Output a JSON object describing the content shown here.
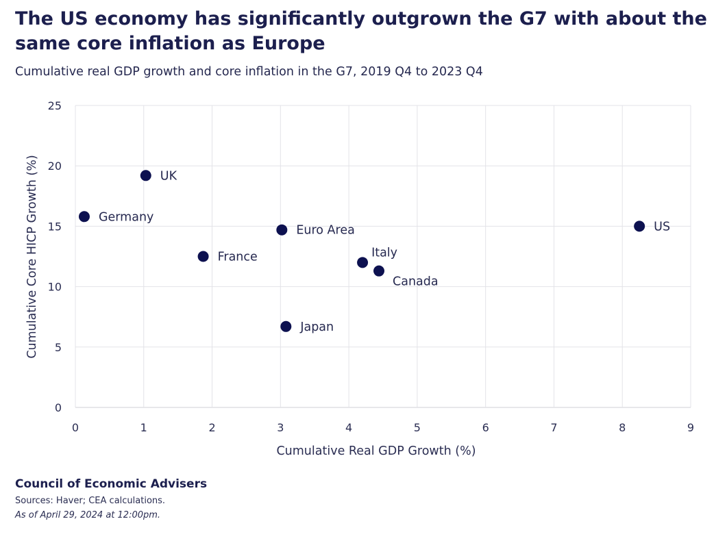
{
  "chart_data": {
    "type": "scatter",
    "title": "The US economy has significantly outgrown the G7 with about the same core inflation as Europe",
    "subtitle": "Cumulative real GDP growth and core inflation in the G7, 2019 Q4 to 2023 Q4",
    "xlabel": "Cumulative Real GDP Growth (%)",
    "ylabel": "Cumulative Core HICP Growth (%)",
    "xlim": [
      0,
      9
    ],
    "ylim": [
      0,
      25
    ],
    "xticks": [
      0,
      1,
      2,
      3,
      4,
      5,
      6,
      7,
      8,
      9
    ],
    "yticks": [
      0,
      5,
      10,
      15,
      20,
      25
    ],
    "grid": true,
    "point_color": "#0d1150",
    "points": [
      {
        "label": "UK",
        "x": 1.03,
        "y": 19.2,
        "label_pos": "right"
      },
      {
        "label": "Germany",
        "x": 0.13,
        "y": 15.8,
        "label_pos": "right"
      },
      {
        "label": "Euro Area",
        "x": 3.02,
        "y": 14.7,
        "label_pos": "right"
      },
      {
        "label": "US",
        "x": 8.25,
        "y": 15.0,
        "label_pos": "right"
      },
      {
        "label": "France",
        "x": 1.87,
        "y": 12.5,
        "label_pos": "right"
      },
      {
        "label": "Italy",
        "x": 4.2,
        "y": 12.0,
        "label_pos": "above-right"
      },
      {
        "label": "Canada",
        "x": 4.44,
        "y": 11.3,
        "label_pos": "below-right"
      },
      {
        "label": "Japan",
        "x": 3.08,
        "y": 6.7,
        "label_pos": "right"
      }
    ]
  },
  "footer": {
    "organization": "Council of Economic Advisers",
    "sources": "Sources: Haver; CEA calculations.",
    "as_of": "As of April 29, 2024 at 12:00pm."
  }
}
